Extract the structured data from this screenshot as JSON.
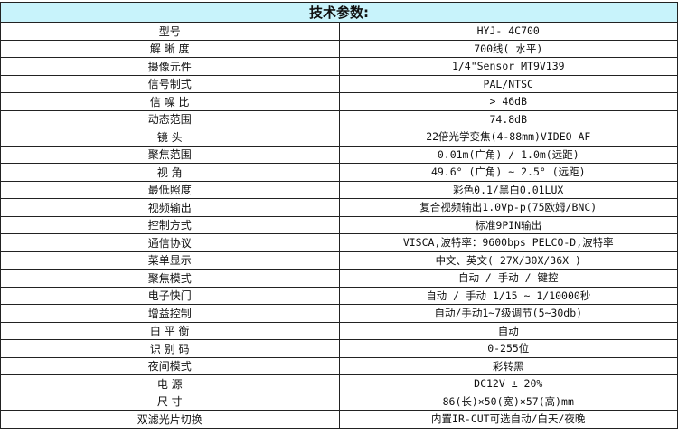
{
  "title": "技术参数:",
  "header_bg": "#c8f3fb",
  "rows": [
    {
      "label": "型号",
      "value": "HYJ- 4C700"
    },
    {
      "label": "解 晰 度",
      "value": "700线( 水平)"
    },
    {
      "label": "摄像元件",
      "value": "1/4\"Sensor MT9V139"
    },
    {
      "label": "信号制式",
      "value": "PAL/NTSC"
    },
    {
      "label": "信 噪 比",
      "value": "> 46dB"
    },
    {
      "label": "动态范围",
      "value": "74.8dB"
    },
    {
      "label": "镜      头",
      "value": "22倍光学变焦(4-88mm)VIDEO AF"
    },
    {
      "label": "聚焦范围",
      "value": "0.01m(广角) / 1.0m(远距)"
    },
    {
      "label": "视      角",
      "value": "49.6° (广角) ~ 2.5° (远距)"
    },
    {
      "label": "最低照度",
      "value": "彩色0.1/黑白0.01LUX"
    },
    {
      "label": "视频输出",
      "value": "复合视频输出1.0Vp-p(75欧姆/BNC)"
    },
    {
      "label": "控制方式",
      "value": "标准9PIN输出"
    },
    {
      "label": "通信协议",
      "value": "VISCA,波特率：9600bps PELCO-D,波特率"
    },
    {
      "label": "菜单显示",
      "value": "中文、英文( 27X/30X/36X )"
    },
    {
      "label": "聚焦模式",
      "value": "自动 / 手动 / 键控"
    },
    {
      "label": "电子快门",
      "value": "自动 / 手动 1/15 ~ 1/10000秒"
    },
    {
      "label": "增益控制",
      "value": "自动/手动1~7级调节(5~30db)"
    },
    {
      "label": "白 平 衡",
      "value": "自动"
    },
    {
      "label": "识 别 码",
      "value": "0-255位"
    },
    {
      "label": "夜间模式",
      "value": "彩转黑"
    },
    {
      "label": "电      源",
      "value": "DC12V ± 20%"
    },
    {
      "label": "尺      寸",
      "value": "86(长)×50(宽)×57(高)mm"
    },
    {
      "label": "双滤光片切换",
      "value": "内置IR-CUT可选自动/白天/夜晚"
    }
  ]
}
